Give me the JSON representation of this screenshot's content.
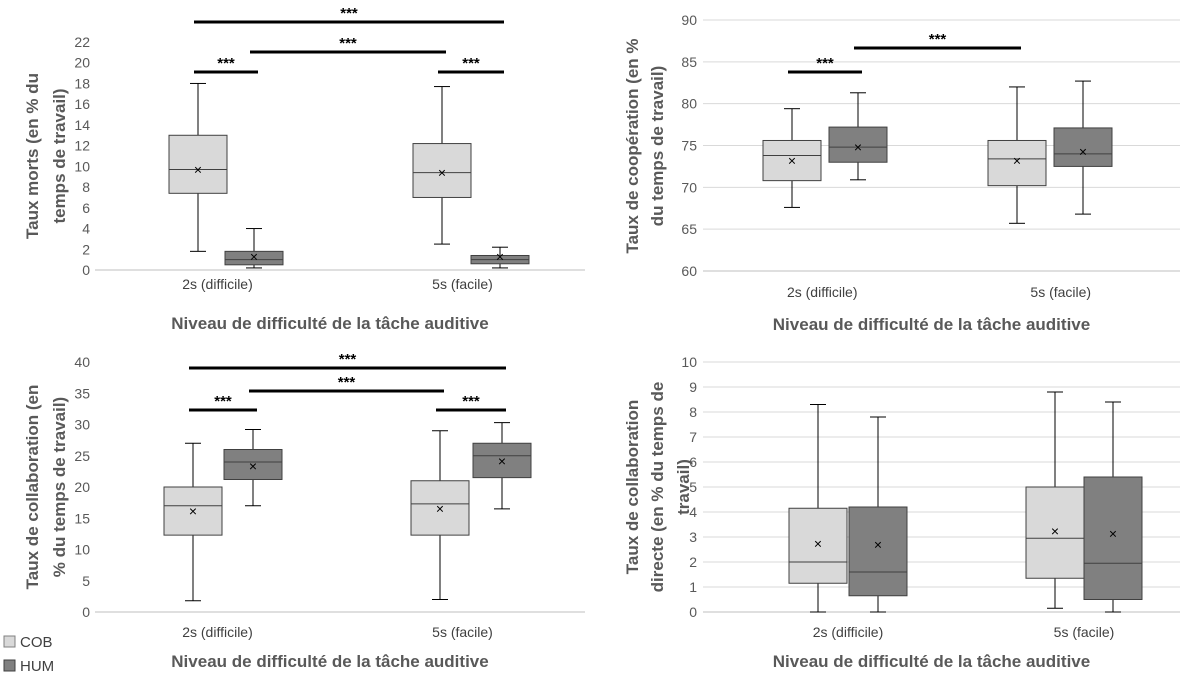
{
  "chart_data": [
    {
      "type": "box",
      "categories": [
        "2s (difficile)",
        "5s (facile)"
      ],
      "series": [
        {
          "name": "COB",
          "color": "#d9d9d9",
          "boxes": [
            {
              "min": 1.8,
              "q1": 7.4,
              "median": 9.7,
              "q3": 13.0,
              "max": 18.0,
              "mean": 9.7
            },
            {
              "min": 2.5,
              "q1": 7.0,
              "median": 9.4,
              "q3": 12.2,
              "max": 17.7,
              "mean": 9.4
            }
          ]
        },
        {
          "name": "HUM",
          "color": "#808080",
          "boxes": [
            {
              "min": 0.2,
              "q1": 0.5,
              "median": 1.0,
              "q3": 1.8,
              "max": 4.0,
              "mean": 1.3
            },
            {
              "min": 0.2,
              "q1": 0.6,
              "median": 1.0,
              "q3": 1.4,
              "max": 2.2,
              "mean": 1.3
            }
          ]
        }
      ],
      "xlabel": "Niveau de difficulté de la tâche auditive",
      "ylabel_lines": [
        "Taux morts (en % du",
        "temps de travail)"
      ],
      "ylim": [
        0,
        22
      ],
      "ytick_step": 2,
      "yticks": [
        "0",
        "2",
        "4",
        "6",
        "8",
        "10",
        "12",
        "14",
        "16",
        "18",
        "20",
        "22"
      ],
      "grid": false,
      "significance": [
        {
          "from": "2s-COB",
          "to": "5s-HUM",
          "label": "***"
        },
        {
          "from": "2s-HUM",
          "to": "5s-COB",
          "label": "***"
        },
        {
          "from": "2s-COB",
          "to": "2s-HUM",
          "label": "***"
        },
        {
          "from": "5s-COB",
          "to": "5s-HUM",
          "label": "***"
        }
      ]
    },
    {
      "type": "box",
      "categories": [
        "2s (difficile)",
        "5s (facile)"
      ],
      "series": [
        {
          "name": "COB",
          "color": "#d9d9d9",
          "boxes": [
            {
              "min": 67.6,
              "q1": 70.8,
              "median": 73.8,
              "q3": 75.6,
              "max": 79.4,
              "mean": 73.2
            },
            {
              "min": 65.7,
              "q1": 70.2,
              "median": 73.4,
              "q3": 75.6,
              "max": 82.0,
              "mean": 73.2
            }
          ]
        },
        {
          "name": "HUM",
          "color": "#808080",
          "boxes": [
            {
              "min": 70.9,
              "q1": 73.0,
              "median": 74.8,
              "q3": 77.2,
              "max": 81.3,
              "mean": 74.8
            },
            {
              "min": 66.8,
              "q1": 72.5,
              "median": 74.0,
              "q3": 77.1,
              "max": 82.7,
              "mean": 74.3
            }
          ]
        }
      ],
      "xlabel": "Niveau de difficulté de la tâche auditive",
      "ylabel_lines": [
        "Taux de coopération (en %",
        "du temps de travail)"
      ],
      "ylim": [
        60,
        90
      ],
      "ytick_step": 5,
      "yticks": [
        "60",
        "65",
        "70",
        "75",
        "80",
        "85",
        "90"
      ],
      "grid": true,
      "significance": [
        {
          "from": "2s-COB",
          "to": "2s-HUM",
          "label": "***"
        },
        {
          "from": "2s-HUM",
          "to": "5s-COB",
          "label": "***"
        }
      ]
    },
    {
      "type": "box",
      "categories": [
        "2s (difficile)",
        "5s (facile)"
      ],
      "series": [
        {
          "name": "COB",
          "color": "#d9d9d9",
          "boxes": [
            {
              "min": 1.8,
              "q1": 12.3,
              "median": 17.0,
              "q3": 20.0,
              "max": 27.0,
              "mean": 16.2
            },
            {
              "min": 2.0,
              "q1": 12.3,
              "median": 17.3,
              "q3": 21.0,
              "max": 29.0,
              "mean": 16.6
            }
          ]
        },
        {
          "name": "HUM",
          "color": "#808080",
          "boxes": [
            {
              "min": 17.0,
              "q1": 21.2,
              "median": 24.0,
              "q3": 26.0,
              "max": 29.2,
              "mean": 23.4
            },
            {
              "min": 16.5,
              "q1": 21.5,
              "median": 25.0,
              "q3": 27.0,
              "max": 30.3,
              "mean": 24.2
            }
          ]
        }
      ],
      "xlabel": "Niveau de difficulté de la tâche auditive",
      "ylabel_lines": [
        "Taux de collaboration (en",
        "% du temps de travail)"
      ],
      "ylim": [
        0,
        40
      ],
      "ytick_step": 5,
      "yticks": [
        "0",
        "5",
        "10",
        "15",
        "20",
        "25",
        "30",
        "35",
        "40"
      ],
      "grid": false,
      "significance": [
        {
          "from": "2s-COB",
          "to": "5s-HUM",
          "label": "***"
        },
        {
          "from": "2s-HUM",
          "to": "5s-COB",
          "label": "***"
        },
        {
          "from": "2s-COB",
          "to": "2s-HUM",
          "label": "***"
        },
        {
          "from": "5s-COB",
          "to": "5s-HUM",
          "label": "***"
        }
      ]
    },
    {
      "type": "box",
      "categories": [
        "2s (difficile)",
        "5s (facile)"
      ],
      "series": [
        {
          "name": "COB",
          "color": "#d9d9d9",
          "boxes": [
            {
              "min": 0.0,
              "q1": 1.15,
              "median": 2.0,
              "q3": 4.15,
              "max": 8.3,
              "mean": 2.75
            },
            {
              "min": 0.15,
              "q1": 1.35,
              "median": 2.95,
              "q3": 5.0,
              "max": 8.8,
              "mean": 3.25
            }
          ]
        },
        {
          "name": "HUM",
          "color": "#808080",
          "boxes": [
            {
              "min": 0.0,
              "q1": 0.65,
              "median": 1.6,
              "q3": 4.2,
              "max": 7.8,
              "mean": 2.7
            },
            {
              "min": 0.0,
              "q1": 0.5,
              "median": 1.95,
              "q3": 5.4,
              "max": 8.4,
              "mean": 3.15
            }
          ]
        }
      ],
      "xlabel": "Niveau de difficulté de la tâche auditive",
      "ylabel_lines": [
        "Taux de collaboration",
        "directe (en % du temps de",
        "travail)"
      ],
      "ylim": [
        0,
        10
      ],
      "ytick_step": 1,
      "yticks": [
        "0",
        "1",
        "2",
        "3",
        "4",
        "5",
        "6",
        "7",
        "8",
        "9",
        "10"
      ],
      "grid": true,
      "significance": []
    }
  ],
  "legend": {
    "placement": "bottom-left",
    "items": [
      {
        "label": "COB",
        "color": "#d9d9d9"
      },
      {
        "label": "HUM",
        "color": "#808080"
      }
    ]
  }
}
